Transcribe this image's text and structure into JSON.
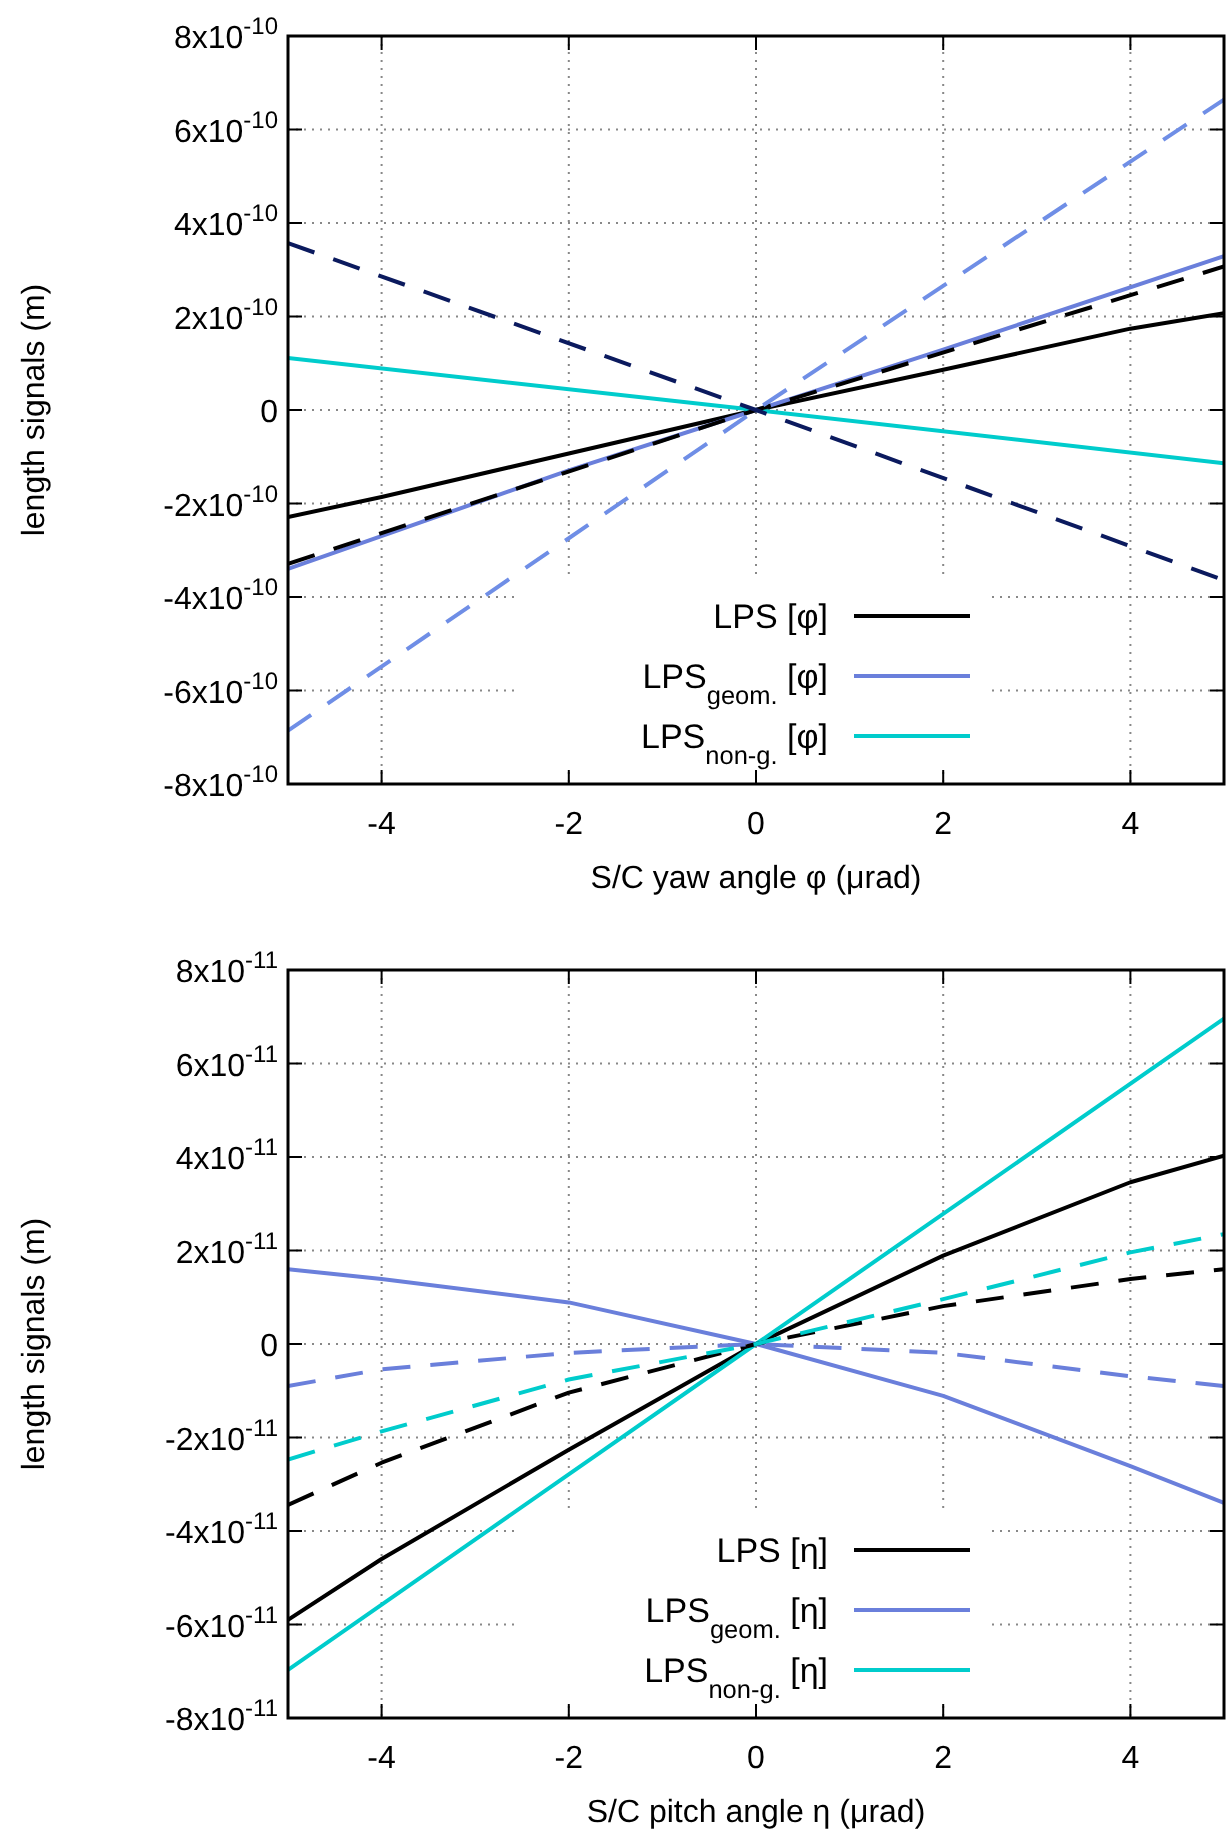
{
  "chart_data": [
    {
      "type": "line",
      "xlabel": "S/C yaw angle φ (μrad)",
      "ylabel": "length signals (m)",
      "xlim": [
        -5,
        5
      ],
      "xticks": [
        -4,
        -2,
        0,
        2,
        4
      ],
      "ylim": [
        -8e-10,
        8e-10
      ],
      "yticks": [
        {
          "value": -8e-10,
          "label": "-8x10$^{-10}$"
        },
        {
          "value": -6e-10,
          "label": "-6x10$^{-10}$"
        },
        {
          "value": -4e-10,
          "label": "-4x10$^{-10}$"
        },
        {
          "value": -2e-10,
          "label": "-2x10$^{-10}$"
        },
        {
          "value": 0,
          "label": "0"
        },
        {
          "value": 2e-10,
          "label": "2x10$^{-10}$"
        },
        {
          "value": 4e-10,
          "label": "4x10$^{-10}$"
        },
        {
          "value": 6e-10,
          "label": "6x10$^{-10}$"
        },
        {
          "value": 8e-10,
          "label": "8x10$^{-10}$"
        }
      ],
      "grid": true,
      "legend": "bottom right",
      "series": [
        {
          "name": "LPS [φ]",
          "color": "#000000",
          "line_style": "solid",
          "x": [
            -5,
            -4,
            -2,
            0,
            2,
            4,
            5
          ],
          "values": [
            -2.29e-10,
            -1.86e-10,
            -9.3e-11,
            0,
            8.6e-11,
            1.74e-10,
            2.07e-10
          ]
        },
        {
          "name": "LPS$_{geom.}$ [φ]",
          "color": "#6a7fdb",
          "line_style": "solid",
          "x": [
            -5,
            -2,
            0,
            2,
            5
          ],
          "values": [
            -3.4e-10,
            -1.29e-10,
            0,
            1.29e-10,
            3.29e-10
          ]
        },
        {
          "name": "LPS$_{non-g.}$ [φ]",
          "color": "#00cccc",
          "line_style": "solid",
          "x": [
            -5,
            0,
            5
          ],
          "values": [
            1.11e-10,
            0,
            -1.14e-10
          ]
        },
        {
          "color": "#000000",
          "line_style": "dashed",
          "x": [
            -5,
            0,
            5
          ],
          "values": [
            -3.29e-10,
            0,
            3.07e-10
          ]
        },
        {
          "color": "#6f8ee6",
          "line_style": "dashed",
          "x": [
            -5,
            0,
            5
          ],
          "values": [
            -6.86e-10,
            0,
            6.64e-10
          ]
        },
        {
          "color": "#0b1a5e",
          "line_style": "dashed",
          "x": [
            -5,
            0,
            5
          ],
          "values": [
            3.57e-10,
            0,
            -3.64e-10
          ]
        }
      ]
    },
    {
      "type": "line",
      "xlabel": "S/C pitch angle η (μrad)",
      "ylabel": "length signals (m)",
      "xlim": [
        -5,
        5
      ],
      "xticks": [
        -4,
        -2,
        0,
        2,
        4
      ],
      "ylim": [
        -8e-11,
        8e-11
      ],
      "yticks": [
        {
          "value": -8e-11,
          "label": "-8x10$^{-11}$"
        },
        {
          "value": -6e-11,
          "label": "-6x10$^{-11}$"
        },
        {
          "value": -4e-11,
          "label": "-4x10$^{-11}$"
        },
        {
          "value": -2e-11,
          "label": "-2x10$^{-11}$"
        },
        {
          "value": 0,
          "label": "0"
        },
        {
          "value": 2e-11,
          "label": "2x10$^{-11}$"
        },
        {
          "value": 4e-11,
          "label": "4x10$^{-11}$"
        },
        {
          "value": 6e-11,
          "label": "6x10$^{-11}$"
        },
        {
          "value": 8e-11,
          "label": "8x10$^{-11}$"
        }
      ],
      "grid": true,
      "legend": "bottom right",
      "series": [
        {
          "name": "LPS [η]",
          "color": "#000000",
          "line_style": "solid",
          "x": [
            -5,
            -4,
            -2,
            0,
            2,
            4,
            5
          ],
          "values": [
            -5.9e-11,
            -4.6e-11,
            -2.26e-11,
            0,
            1.89e-11,
            3.46e-11,
            4.03e-11
          ]
        },
        {
          "name": "LPS$_{geom.}$ [η]",
          "color": "#6a7fdb",
          "line_style": "solid",
          "x": [
            -5,
            -4,
            -2,
            0,
            2,
            4,
            5
          ],
          "values": [
            1.6e-11,
            1.39e-11,
            8.9e-12,
            0,
            -1.11e-11,
            -2.61e-11,
            -3.4e-11
          ]
        },
        {
          "name": "LPS$_{non-g.}$ [η]",
          "color": "#00cccc",
          "line_style": "solid",
          "x": [
            -5,
            0,
            5
          ],
          "values": [
            -6.97e-11,
            0,
            6.96e-11
          ]
        },
        {
          "color": "#000000",
          "line_style": "dashed",
          "x": [
            -5,
            -4,
            -2,
            0,
            2,
            4,
            5
          ],
          "values": [
            -3.44e-11,
            -2.54e-11,
            -1.04e-11,
            0,
            8.1e-12,
            1.39e-11,
            1.6e-11
          ]
        },
        {
          "color": "#6a7fdb",
          "line_style": "dashed",
          "x": [
            -5,
            -4,
            -2,
            0,
            2,
            4,
            5
          ],
          "values": [
            -9e-12,
            -5.4e-12,
            -1.9e-12,
            0,
            -1.9e-12,
            -6.9e-12,
            -9e-12
          ]
        },
        {
          "color": "#00cccc",
          "line_style": "dashed",
          "x": [
            -5,
            -4,
            -2,
            0,
            2,
            4,
            5
          ],
          "values": [
            -2.47e-11,
            -1.87e-11,
            -7.6e-12,
            0,
            9.6e-12,
            1.96e-11,
            2.35e-11
          ]
        }
      ]
    }
  ]
}
